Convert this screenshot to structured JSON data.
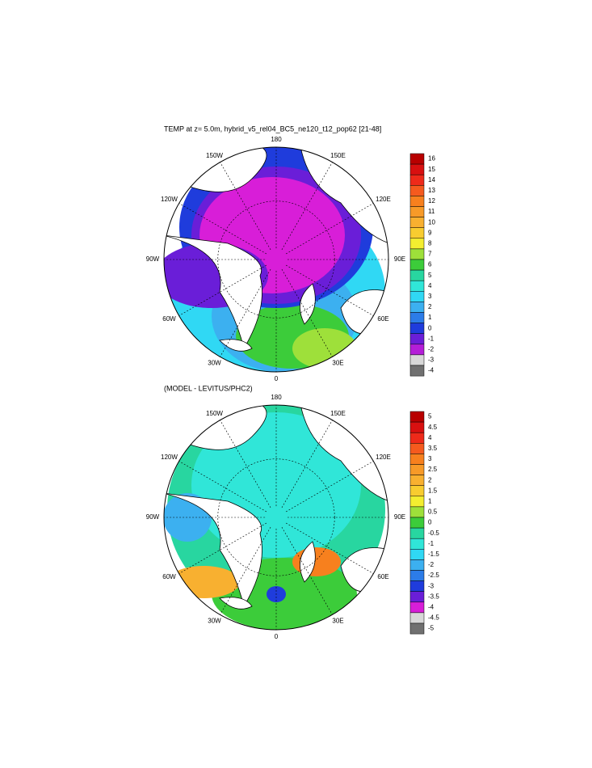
{
  "maps": [
    {
      "title": "TEMP at z=   5.0m, hybrid_v5_rel04_BC5_ne120_t12_pop62 [21-48]",
      "lon_labels": [
        "0",
        "30E",
        "60E",
        "90E",
        "120E",
        "150E",
        "180",
        "150W",
        "120W",
        "90W",
        "60W",
        "30W"
      ],
      "colorbar": {
        "labels": [
          16,
          15,
          14,
          13,
          12,
          11,
          10,
          9,
          8,
          7,
          6,
          5,
          4,
          3,
          2,
          1,
          0,
          -1,
          -2,
          -3,
          -4
        ],
        "colors": [
          "#b80000",
          "#d81010",
          "#ee2a1a",
          "#f55a1e",
          "#f7801e",
          "#f79a28",
          "#f8b030",
          "#f8cc30",
          "#f4ee30",
          "#9ee03a",
          "#3ccc3a",
          "#28d6a0",
          "#30e6d8",
          "#30d8f4",
          "#3cb0f0",
          "#2c7ce8",
          "#1f3cdc",
          "#6a1ed8",
          "#b41ed8",
          "#d8d8d8",
          "#707070"
        ]
      }
    },
    {
      "title": "(MODEL - LEVITUS/PHC2)",
      "lon_labels": [
        "0",
        "30E",
        "60E",
        "90E",
        "120E",
        "150E",
        "180",
        "150W",
        "120W",
        "90W",
        "60W",
        "30W"
      ],
      "colorbar": {
        "labels": [
          5,
          4.5,
          4,
          3.5,
          3,
          2.5,
          2,
          1.5,
          1,
          0.5,
          0,
          -0.5,
          -1,
          -1.5,
          -2,
          -2.5,
          -3,
          -3.5,
          -4,
          -4.5,
          -5
        ],
        "colors": [
          "#b80000",
          "#d81010",
          "#ee2a1a",
          "#f55a1e",
          "#f7801e",
          "#f79a28",
          "#f8b030",
          "#f8cc30",
          "#f4ee30",
          "#9ee03a",
          "#3ccc3a",
          "#28d6a0",
          "#30e6d8",
          "#30d8f4",
          "#3cb0f0",
          "#2c7ce8",
          "#1f3cdc",
          "#6a1ed8",
          "#d81ed8",
          "#d8d8d8",
          "#707070"
        ]
      }
    }
  ]
}
